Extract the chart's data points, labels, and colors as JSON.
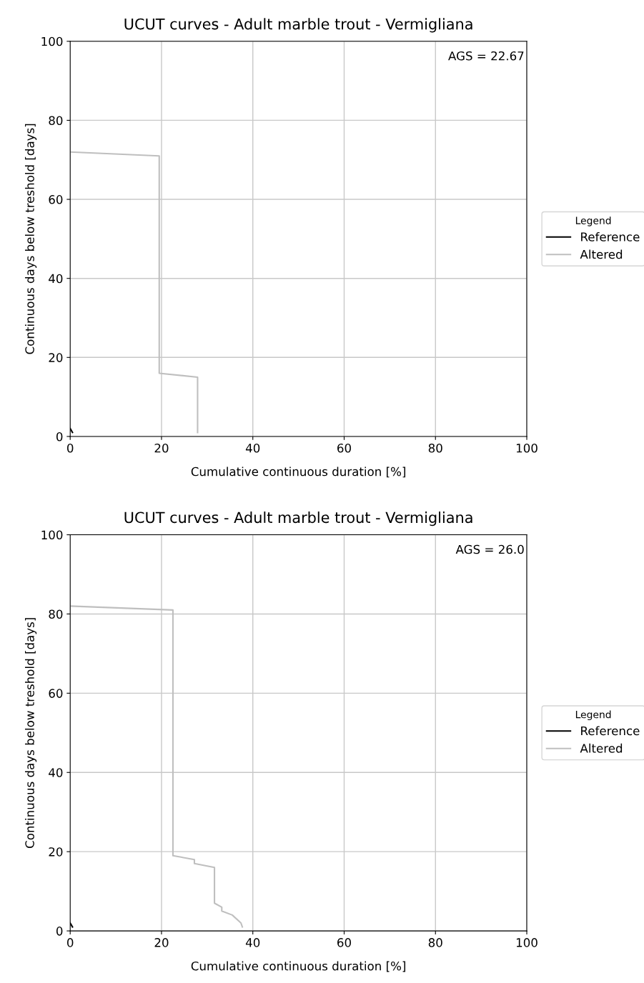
{
  "chart_data": [
    {
      "type": "line",
      "title": "UCUT curves - Adult marble trout - Vermigliana",
      "xlabel": "Cumulative continuous duration [%]",
      "ylabel": "Continuous days below treshold [days]",
      "legend_title": "Legend",
      "annotations": [
        "AGS = 22.67"
      ],
      "xlim": [
        0,
        100
      ],
      "ylim": [
        0,
        100
      ],
      "xticks": [
        0,
        20,
        40,
        60,
        80,
        100
      ],
      "yticks": [
        0,
        20,
        40,
        60,
        80,
        100
      ],
      "grid": true,
      "legend": "right",
      "series": [
        {
          "name": "Reference",
          "color": "#000000",
          "x": [
            0,
            0.5
          ],
          "values": [
            2,
            1
          ]
        },
        {
          "name": "Altered",
          "color": "#bfbfbf",
          "x": [
            0,
            19.5,
            19.5,
            27.9,
            27.9
          ],
          "values": [
            72,
            71,
            16,
            15,
            1
          ]
        }
      ]
    },
    {
      "type": "line",
      "title": "UCUT curves - Adult marble trout - Vermigliana",
      "xlabel": "Cumulative continuous duration [%]",
      "ylabel": "Continuous days below treshold [days]",
      "legend_title": "Legend",
      "annotations": [
        "AGS = 26.0"
      ],
      "xlim": [
        0,
        100
      ],
      "ylim": [
        0,
        100
      ],
      "xticks": [
        0,
        20,
        40,
        60,
        80,
        100
      ],
      "yticks": [
        0,
        20,
        40,
        60,
        80,
        100
      ],
      "grid": true,
      "legend": "right",
      "series": [
        {
          "name": "Reference",
          "color": "#000000",
          "x": [
            0,
            0.5
          ],
          "values": [
            2,
            1
          ]
        },
        {
          "name": "Altered",
          "color": "#bfbfbf",
          "x": [
            0,
            22.5,
            22.5,
            27.2,
            27.2,
            31.6,
            31.6,
            33.2,
            33.2,
            35.5,
            37.4,
            37.7
          ],
          "values": [
            82,
            81,
            19,
            18,
            17,
            16,
            7,
            6,
            5,
            4,
            2,
            1
          ]
        }
      ]
    }
  ]
}
